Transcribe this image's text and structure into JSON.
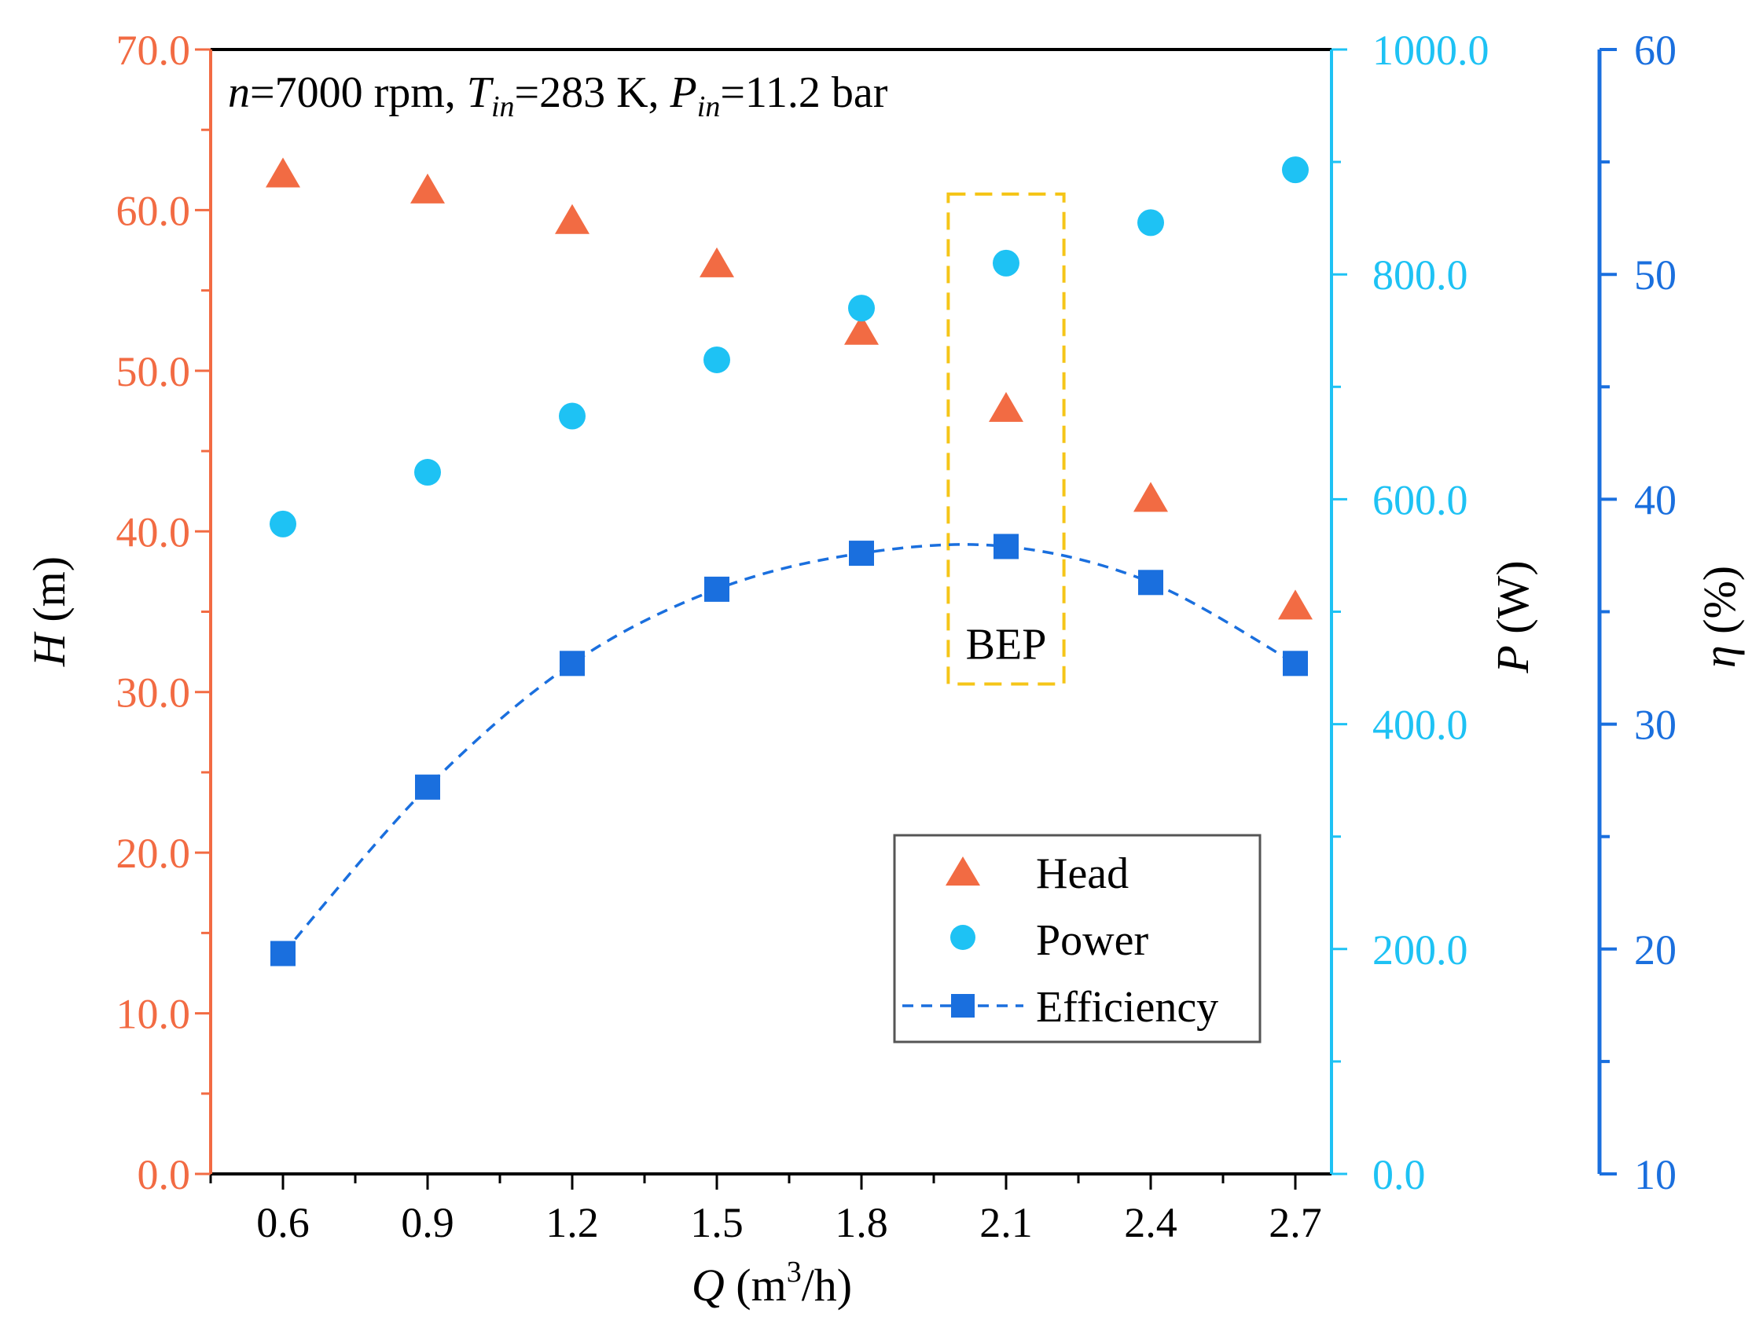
{
  "chart_data": {
    "type": "scatter",
    "title_parts": {
      "n_sym": "n",
      "n_val": "=7000 rpm, ",
      "t_sym": "T",
      "t_sub": "in",
      "t_val": "=283 K, ",
      "p_sym": "P",
      "p_sub": "in",
      "p_val": "=11.2 bar"
    },
    "x": {
      "label_sym": "Q",
      "label_unit_pre": " (m",
      "label_unit_sup": "3",
      "label_unit_post": "/h)",
      "values": [
        0.6,
        0.9,
        1.2,
        1.5,
        1.8,
        2.1,
        2.4,
        2.7
      ],
      "tick_labels": [
        "0.6",
        "0.9",
        "1.2",
        "1.5",
        "1.8",
        "2.1",
        "2.4",
        "2.7"
      ],
      "range": [
        0.45,
        2.775
      ]
    },
    "axes": {
      "head": {
        "label_sym": "H",
        "label_unit": " (m)",
        "range": [
          0,
          70
        ],
        "tick_labels": [
          "0.0",
          "10.0",
          "20.0",
          "30.0",
          "40.0",
          "50.0",
          "60.0",
          "70.0"
        ],
        "color": "#f26b43"
      },
      "power": {
        "label_sym": "P",
        "label_unit": " (W)",
        "range": [
          0,
          1000
        ],
        "tick_labels": [
          "0.0",
          "200.0",
          "400.0",
          "600.0",
          "800.0",
          "1000.0"
        ],
        "color": "#1ec2f4"
      },
      "efficiency": {
        "label_sym": "η",
        "label_unit": " (%)",
        "range": [
          10,
          60
        ],
        "tick_labels": [
          "10",
          "20",
          "30",
          "40",
          "50",
          "60"
        ],
        "color": "#1a6fde"
      }
    },
    "series": [
      {
        "name": "Head",
        "axis": "head",
        "marker": "triangle",
        "values": [
          62.2,
          61.2,
          59.3,
          56.6,
          52.4,
          47.6,
          42.0,
          35.3
        ]
      },
      {
        "name": "Power",
        "axis": "power",
        "marker": "circle",
        "values": [
          578,
          624,
          674,
          724,
          770,
          810,
          846,
          893
        ]
      },
      {
        "name": "Efficiency",
        "axis": "efficiency",
        "marker": "square",
        "line": "dashed",
        "values": [
          19.8,
          27.2,
          32.7,
          36.0,
          37.6,
          37.9,
          36.3,
          32.7
        ]
      }
    ],
    "legend": {
      "position": "bottom-right",
      "entries": [
        "Head",
        "Power",
        "Efficiency"
      ]
    },
    "annotation": {
      "text": "BEP",
      "x_range": [
        1.98,
        2.22
      ],
      "head_range": [
        30.5,
        61.0
      ],
      "color": "#f5c518"
    }
  }
}
